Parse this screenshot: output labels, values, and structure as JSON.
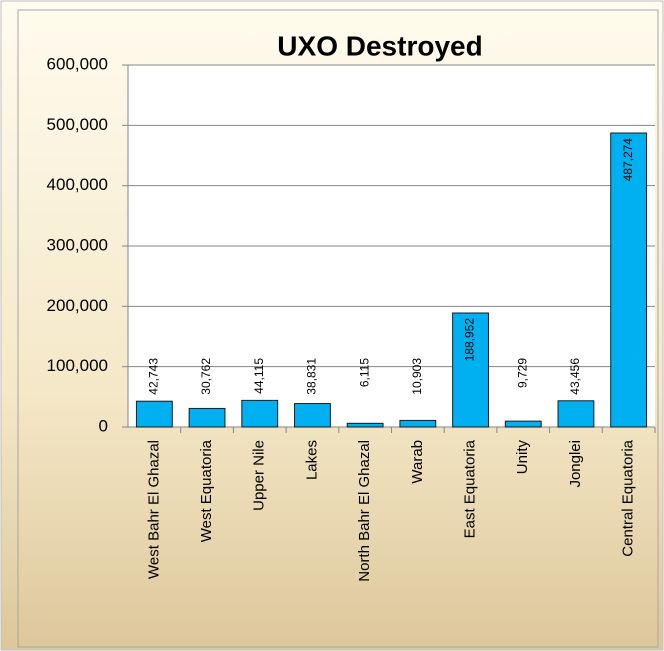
{
  "chart_data": {
    "type": "bar",
    "title": "UXO Destroyed",
    "categories": [
      "West Bahr El Ghazal",
      "West Equatoria",
      "Upper Nile",
      "Lakes",
      "North Bahr El Ghazal",
      "Warab",
      "East Equatoria",
      "Unity",
      "Jonglei",
      "Central Equatoria"
    ],
    "values": [
      42743,
      30762,
      44115,
      38831,
      6115,
      10903,
      188952,
      9729,
      43456,
      487274
    ],
    "value_labels": [
      "42,743",
      "30,762",
      "44,115",
      "38,831",
      "6,115",
      "10,903",
      "188,952",
      "9,729",
      "43,456",
      "487,274"
    ],
    "color": "#00b0f0",
    "ylim": [
      0,
      600000
    ],
    "yticks": [
      {
        "value": 0,
        "label": "0"
      },
      {
        "value": 100000,
        "label": "100,000"
      },
      {
        "value": 200000,
        "label": "200,000"
      },
      {
        "value": 300000,
        "label": "300,000"
      },
      {
        "value": 400000,
        "label": "400,000"
      },
      {
        "value": 500000,
        "label": "500,000"
      },
      {
        "value": 600000,
        "label": "600,000"
      }
    ],
    "grid": true
  }
}
